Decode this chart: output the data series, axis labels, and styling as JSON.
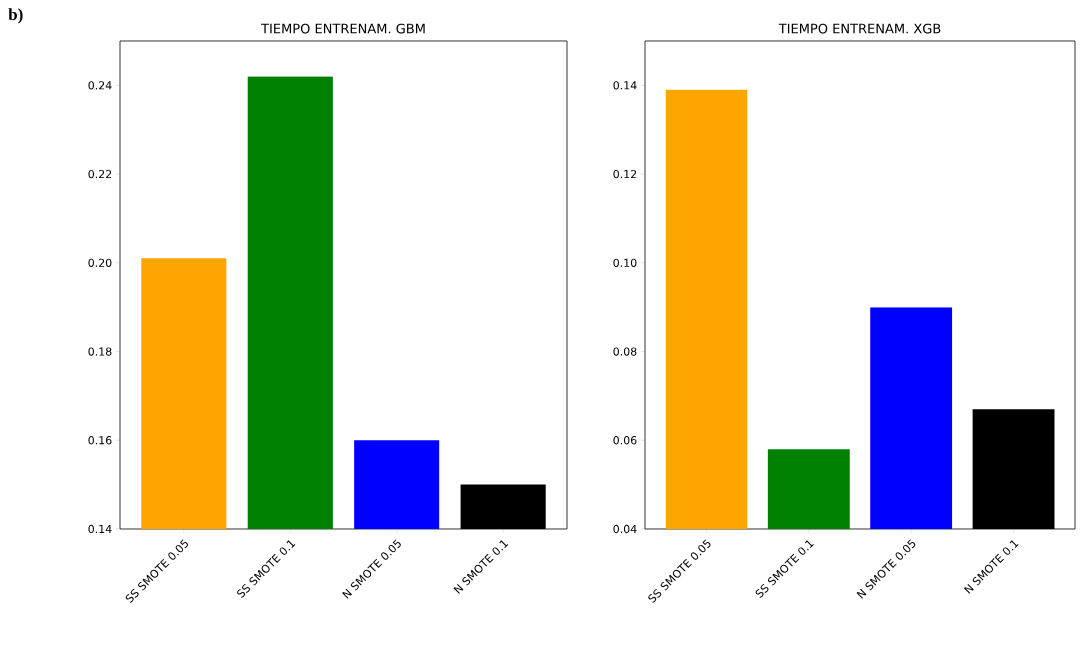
{
  "chart_data": [
    {
      "type": "bar",
      "title": "TIEMPO ENTRENAM. GBM",
      "categories": [
        "SS SMOTE 0.05",
        "SS SMOTE 0.1",
        "N SMOTE 0.05",
        "N SMOTE 0.1"
      ],
      "values": [
        0.201,
        0.242,
        0.16,
        0.15
      ],
      "colors": [
        "#ffa500",
        "#008000",
        "#0000ff",
        "#000000"
      ],
      "ylim": [
        0.14,
        0.25
      ],
      "yticks": [
        0.14,
        0.16,
        0.18,
        {
          "value": 0.2,
          "label": "0.20"
        },
        0.22,
        0.24
      ],
      "annotations": [
        "b)"
      ]
    },
    {
      "type": "bar",
      "title": "TIEMPO ENTRENAM. XGB",
      "categories": [
        "SS SMOTE 0.05",
        "SS SMOTE 0.1",
        "N SMOTE 0.05",
        "N SMOTE 0.1"
      ],
      "values": [
        0.139,
        0.058,
        0.09,
        0.067
      ],
      "colors": [
        "#ffa500",
        "#008000",
        "#0000ff",
        "#000000"
      ],
      "ylim": [
        0.04,
        0.15
      ],
      "yticks": [
        0.04,
        0.06,
        0.08,
        {
          "value": 0.1,
          "label": "0.10"
        },
        0.12,
        0.14
      ]
    }
  ]
}
